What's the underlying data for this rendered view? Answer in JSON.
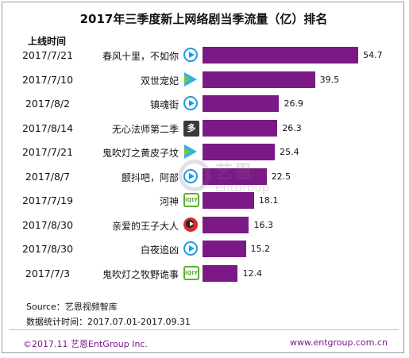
{
  "title": "2017年三季度新上网络剧当季流量（亿）排名",
  "column_header": "上线时间",
  "chart_data": {
    "type": "bar",
    "orientation": "horizontal",
    "title": "2017年三季度新上网络剧当季流量（亿）排名",
    "categories": [
      "春风十里，不如你",
      "双世宠妃",
      "镇魂街",
      "无心法师第二季",
      "鬼吹灯之黄皮子坟",
      "颤抖吧，阿部",
      "河神",
      "亲爱的王子大人",
      "白夜追凶",
      "鬼吹灯之牧野诡事"
    ],
    "dates": [
      "2017/7/21",
      "2017/7/10",
      "2017/8/2",
      "2017/8/14",
      "2017/7/21",
      "2017/8/7",
      "2017/7/19",
      "2017/8/30",
      "2017/8/30",
      "2017/7/3"
    ],
    "platforms": [
      "tencent-video",
      "youku",
      "tencent-video",
      "multi-platform",
      "youku",
      "tencent-video",
      "iqiyi",
      "mango-tv",
      "tencent-video",
      "iqiyi"
    ],
    "platform_labels": [
      "",
      "",
      "",
      "多",
      "",
      "",
      "iQIYI",
      "",
      "",
      "iQIYI"
    ],
    "values": [
      54.7,
      39.5,
      26.9,
      26.3,
      25.4,
      22.5,
      18.1,
      16.3,
      15.2,
      12.4
    ],
    "value_labels": [
      "54.7",
      "39.5",
      "26.9",
      "26.3",
      "25.4",
      "22.5",
      "18.1",
      "16.3",
      "15.2",
      "12.4"
    ],
    "xlim": [
      0,
      58
    ],
    "bar_color": "#7b1a86",
    "grid": false
  },
  "watermark": {
    "cn": "艺恩",
    "en": "entgroup"
  },
  "source": "Source：艺恩视频智库",
  "stats_period": "数据统计时间：2017.07.01-2017.09.31",
  "footer": {
    "copyright": "©2017.11 艺恩EntGroup Inc.",
    "website": "www.entgroup.com.cn"
  }
}
